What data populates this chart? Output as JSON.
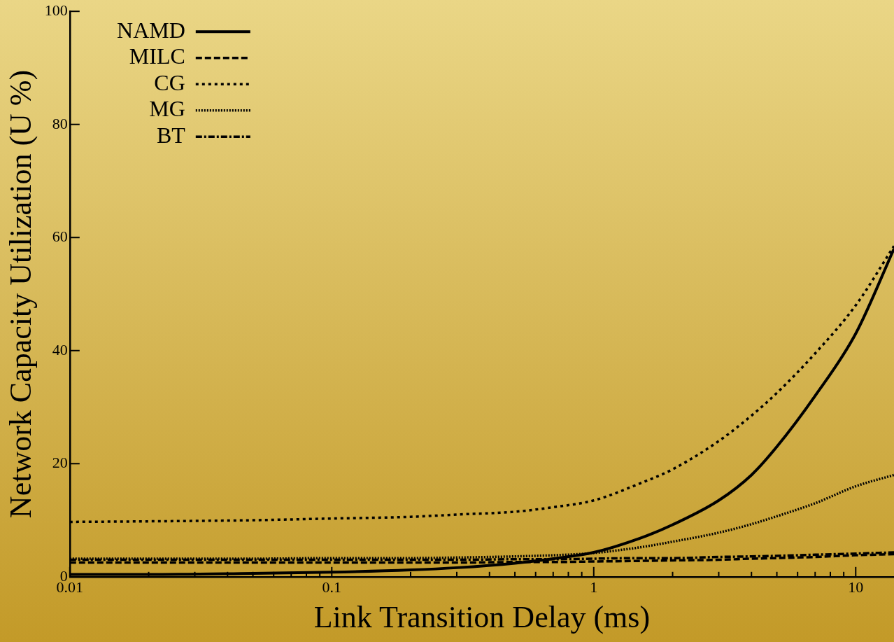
{
  "chart_data": {
    "type": "line",
    "xlabel": "Link Transition Delay (ms)",
    "ylabel": "Network Capacity Utilization (U %)",
    "log": "x",
    "x": [
      0.01,
      0.02,
      0.05,
      0.1,
      0.2,
      0.3,
      0.5,
      0.7,
      1,
      1.5,
      2,
      3,
      4,
      5,
      7,
      10,
      14
    ],
    "series": [
      {
        "name": "NAMD",
        "color": "#000000",
        "line_style": "solid",
        "values": [
          0.4,
          0.4,
          0.6,
          0.8,
          1.2,
          1.6,
          2.4,
          3.2,
          4.3,
          6.8,
          9.2,
          13.5,
          18,
          23,
          32,
          43,
          58
        ]
      },
      {
        "name": "MILC",
        "color": "#000000",
        "line_style": "dashed",
        "values": [
          2.5,
          2.5,
          2.5,
          2.5,
          2.5,
          2.5,
          2.6,
          2.6,
          2.7,
          2.8,
          2.9,
          3.0,
          3.2,
          3.3,
          3.5,
          3.8,
          4.0
        ]
      },
      {
        "name": "CG",
        "color": "#000000",
        "line_style": "dotted",
        "values": [
          9.7,
          9.8,
          10,
          10.3,
          10.6,
          11,
          11.5,
          12.3,
          13.5,
          16.5,
          19,
          24,
          28.5,
          32.5,
          39.5,
          48,
          58.5
        ]
      },
      {
        "name": "MG",
        "color": "#000000",
        "line_style": "finedotted",
        "values": [
          3.2,
          3.2,
          3.2,
          3.3,
          3.3,
          3.4,
          3.6,
          3.8,
          4.2,
          5.2,
          6.2,
          7.8,
          9.3,
          10.7,
          13,
          16,
          18
        ]
      },
      {
        "name": "BT",
        "color": "#000000",
        "line_style": "dashdot",
        "values": [
          3.0,
          3.0,
          3.0,
          3.0,
          3.0,
          3.0,
          3.1,
          3.1,
          3.2,
          3.3,
          3.3,
          3.5,
          3.6,
          3.7,
          3.9,
          4.1,
          4.3
        ]
      }
    ],
    "xlim": [
      0.01,
      14
    ],
    "ylim": [
      0,
      100
    ],
    "xticks": [
      0.01,
      {
        "value": 0.02,
        "label": null
      },
      {
        "value": 0.03,
        "label": null
      },
      {
        "value": 0.04,
        "label": null
      },
      {
        "value": 0.05,
        "label": null
      },
      {
        "value": 0.06,
        "label": null
      },
      {
        "value": 0.07,
        "label": null
      },
      {
        "value": 0.08,
        "label": null
      },
      {
        "value": 0.09,
        "label": null
      },
      0.1,
      {
        "value": 0.2,
        "label": null
      },
      {
        "value": 0.3,
        "label": null
      },
      {
        "value": 0.4,
        "label": null
      },
      {
        "value": 0.5,
        "label": null
      },
      {
        "value": 0.6,
        "label": null
      },
      {
        "value": 0.7,
        "label": null
      },
      {
        "value": 0.8,
        "label": null
      },
      {
        "value": 0.9,
        "label": null
      },
      1,
      {
        "value": 2,
        "label": null
      },
      {
        "value": 3,
        "label": null
      },
      {
        "value": 4,
        "label": null
      },
      {
        "value": 5,
        "label": null
      },
      {
        "value": 6,
        "label": null
      },
      {
        "value": 7,
        "label": null
      },
      {
        "value": 8,
        "label": null
      },
      {
        "value": 9,
        "label": null
      },
      10
    ],
    "yticks": [
      0,
      20,
      40,
      60,
      80,
      100
    ],
    "grid": false,
    "legend": "top left",
    "marker": "none"
  }
}
